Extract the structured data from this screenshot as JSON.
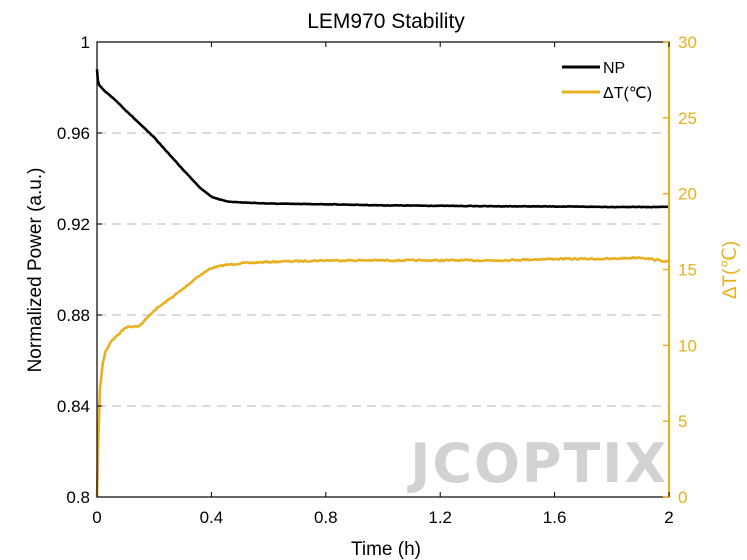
{
  "chart_data": {
    "type": "line",
    "title": "LEM970 Stability",
    "xlabel": "Time (h)",
    "ylabel": "Normalized Power (a.u.)",
    "y2label": "ΔT(℃)",
    "xlim": [
      0,
      2
    ],
    "ylim": [
      0.8,
      1.0
    ],
    "y2lim": [
      0,
      30
    ],
    "xticks": [
      0,
      0.4,
      0.8,
      1.2,
      1.6,
      2
    ],
    "xtick_labels": [
      "0",
      "0.4",
      "0.8",
      "1.2",
      "1.6",
      "2"
    ],
    "yticks": [
      0.8,
      0.84,
      0.88,
      0.92,
      0.96,
      1.0
    ],
    "ytick_labels": [
      "0.8",
      "0.84",
      "0.88",
      "0.92",
      "0.96",
      "1"
    ],
    "y2ticks": [
      0,
      5,
      10,
      15,
      20,
      25,
      30
    ],
    "y2tick_labels": [
      "0",
      "5",
      "10",
      "15",
      "20",
      "25",
      "30"
    ],
    "grid": "horizontal-dashed",
    "legend_position": "top-right",
    "series": [
      {
        "name": "NP",
        "axis": "left",
        "color": "#000000",
        "x": [
          0,
          0.003,
          0.008,
          0.015,
          0.03,
          0.06,
          0.1,
          0.15,
          0.2,
          0.25,
          0.3,
          0.33,
          0.36,
          0.4,
          0.45,
          0.5,
          0.6,
          0.7,
          0.8,
          1.0,
          1.2,
          1.4,
          1.6,
          1.8,
          2.0
        ],
        "y": [
          0.988,
          0.983,
          0.981,
          0.98,
          0.978,
          0.975,
          0.97,
          0.964,
          0.958,
          0.951,
          0.944,
          0.94,
          0.936,
          0.932,
          0.93,
          0.9295,
          0.929,
          0.9288,
          0.9287,
          0.9282,
          0.928,
          0.9278,
          0.9277,
          0.9275,
          0.9275
        ]
      },
      {
        "name": "ΔT(℃)",
        "axis": "right",
        "color": "#E8B020",
        "x": [
          0,
          0.005,
          0.01,
          0.02,
          0.03,
          0.05,
          0.08,
          0.1,
          0.15,
          0.2,
          0.25,
          0.3,
          0.35,
          0.4,
          0.45,
          0.5,
          0.6,
          0.8,
          1.0,
          1.2,
          1.4,
          1.6,
          1.8,
          1.9,
          2.0
        ],
        "y": [
          0,
          4,
          7,
          8.8,
          9.6,
          10.3,
          10.8,
          11.2,
          11.3,
          12.3,
          13.0,
          13.7,
          14.5,
          15.1,
          15.3,
          15.4,
          15.5,
          15.6,
          15.6,
          15.6,
          15.6,
          15.7,
          15.7,
          15.8,
          15.5
        ]
      }
    ],
    "watermark": "JCOPTIX"
  }
}
